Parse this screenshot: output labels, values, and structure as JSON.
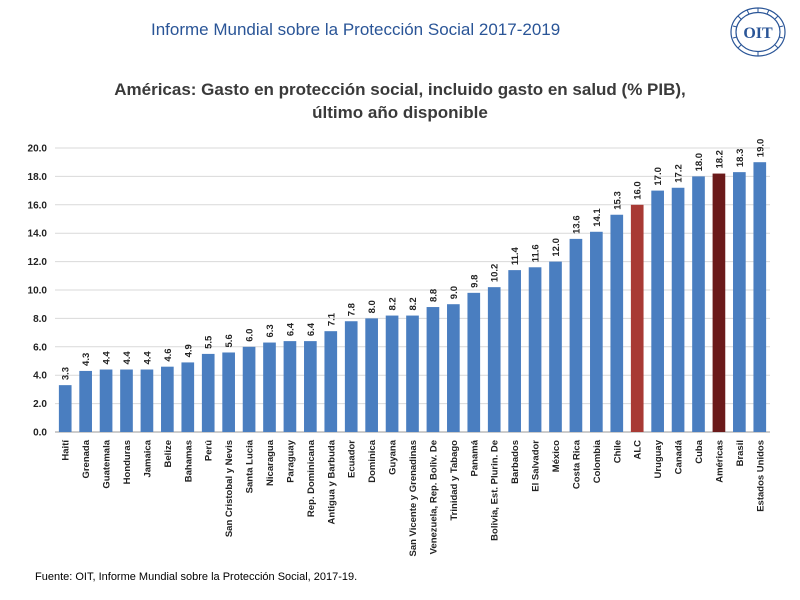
{
  "header": {
    "title": "Informe Mundial sobre la Protección Social 2017-2019"
  },
  "logo": {
    "text": "OIT"
  },
  "footer": {
    "source": "Fuente: OIT, Informe Mundial sobre la Protección Social, 2017-19."
  },
  "colors": {
    "bar": "#4a7ec0",
    "highlight_alc": "#a83a34",
    "highlight_americas": "#6b1a1a",
    "title": "#2a5597"
  },
  "chart_data": {
    "type": "bar",
    "title_line1": "Américas: Gasto en protección social, incluido gasto en salud (% PIB),",
    "title_line2": "último año disponible",
    "xlabel": "",
    "ylabel": "",
    "ylim": [
      0,
      20
    ],
    "yticks": [
      "0.0",
      "2.0",
      "4.0",
      "6.0",
      "8.0",
      "10.0",
      "12.0",
      "14.0",
      "16.0",
      "18.0",
      "20.0"
    ],
    "grid": true,
    "categories": [
      "Haití",
      "Grenada",
      "Guatemala",
      "Honduras",
      "Jamaica",
      "Belize",
      "Bahamas",
      "Perú",
      "San Cristobal y Nevis",
      "Santa Lucia",
      "Nicaragua",
      "Paraguay",
      "Rep. Dominicana",
      "Antigua y Barbuda",
      "Ecuador",
      "Dominica",
      "Guyana",
      "San Vicente y Grenadinas",
      "Venezuela, Rep. Boliv. De",
      "Trinidad y Tabago",
      "Panamá",
      "Bolivia, Est. Plurin. De",
      "Barbados",
      "El Salvador",
      "México",
      "Costa Rica",
      "Colombia",
      "Chile",
      "ALC",
      "Uruguay",
      "Canadá",
      "Cuba",
      "Américas",
      "Brasil",
      "Estados Unidos"
    ],
    "values": [
      3.3,
      4.3,
      4.4,
      4.4,
      4.4,
      4.6,
      4.9,
      5.5,
      5.6,
      6.0,
      6.3,
      6.4,
      6.4,
      7.1,
      7.8,
      8.0,
      8.2,
      8.2,
      8.8,
      9.0,
      9.8,
      10.2,
      11.4,
      11.6,
      12.0,
      13.6,
      14.1,
      15.3,
      16.0,
      17.0,
      17.2,
      18.0,
      18.2,
      18.3,
      19.0
    ],
    "value_labels": [
      "3.3",
      "4.3",
      "4.4",
      "4.4",
      "4.4",
      "4.6",
      "4.9",
      "5.5",
      "5.6",
      "6.0",
      "6.3",
      "6.4",
      "6.4",
      "7.1",
      "7.8",
      "8.0",
      "8.2",
      "8.2",
      "8.8",
      "9.0",
      "9.8",
      "10.2",
      "11.4",
      "11.6",
      "12.0",
      "13.6",
      "14.1",
      "15.3",
      "16.0",
      "17.0",
      "17.2",
      "18.0",
      "18.2",
      "18.3",
      "19.0"
    ],
    "highlight": {
      "ALC": "#a83a34",
      "Américas": "#6b1a1a"
    }
  }
}
